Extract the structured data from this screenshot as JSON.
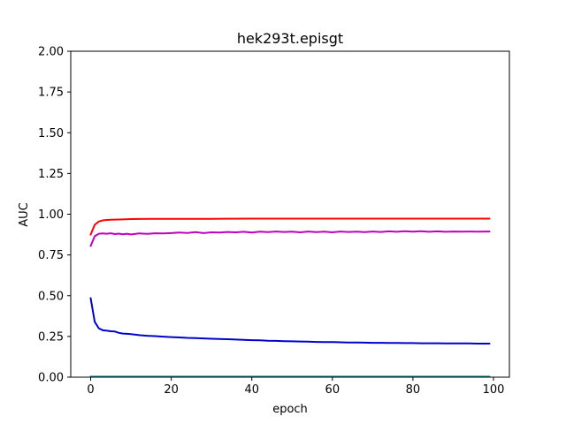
{
  "chart_data": {
    "type": "line",
    "title": "hek293t.episgt",
    "xlabel": "epoch",
    "ylabel": "AUC",
    "xlim": [
      -4.95,
      103.95
    ],
    "ylim": [
      0,
      2.0
    ],
    "xticks": [
      0,
      20,
      40,
      60,
      80,
      100
    ],
    "yticks": [
      0.0,
      0.25,
      0.5,
      0.75,
      1.0,
      1.25,
      1.5,
      1.75,
      2.0
    ],
    "xtick_labels": [
      "0",
      "20",
      "40",
      "60",
      "80",
      "100"
    ],
    "ytick_labels": [
      "0.00",
      "0.25",
      "0.50",
      "0.75",
      "1.00",
      "1.25",
      "1.50",
      "1.75",
      "2.00"
    ],
    "grid": false,
    "series": [
      {
        "color": "#ff0000",
        "x": [
          0,
          1,
          2,
          3,
          4,
          5,
          6,
          8,
          10,
          12,
          15,
          20,
          30,
          40,
          50,
          60,
          70,
          80,
          90,
          99
        ],
        "y": [
          0.875,
          0.935,
          0.955,
          0.962,
          0.965,
          0.966,
          0.967,
          0.968,
          0.97,
          0.971,
          0.972,
          0.972,
          0.972,
          0.973,
          0.973,
          0.973,
          0.973,
          0.973,
          0.973,
          0.973
        ]
      },
      {
        "color": "#bf00bf",
        "x": [
          0,
          1,
          2,
          3,
          4,
          5,
          6,
          7,
          8,
          9,
          10,
          12,
          14,
          16,
          18,
          20,
          22,
          24,
          26,
          28,
          30,
          32,
          34,
          36,
          38,
          40,
          42,
          44,
          46,
          48,
          50,
          52,
          54,
          56,
          58,
          60,
          62,
          64,
          66,
          68,
          70,
          72,
          74,
          76,
          78,
          80,
          82,
          84,
          86,
          88,
          90,
          92,
          94,
          96,
          99
        ],
        "y": [
          0.805,
          0.865,
          0.88,
          0.882,
          0.88,
          0.883,
          0.878,
          0.881,
          0.877,
          0.88,
          0.876,
          0.882,
          0.879,
          0.883,
          0.882,
          0.884,
          0.887,
          0.885,
          0.89,
          0.884,
          0.889,
          0.887,
          0.891,
          0.889,
          0.892,
          0.888,
          0.893,
          0.89,
          0.894,
          0.891,
          0.893,
          0.889,
          0.894,
          0.89,
          0.893,
          0.889,
          0.894,
          0.891,
          0.893,
          0.89,
          0.894,
          0.891,
          0.895,
          0.892,
          0.896,
          0.893,
          0.896,
          0.892,
          0.895,
          0.892,
          0.894,
          0.893,
          0.894,
          0.893,
          0.894
        ]
      },
      {
        "color": "#0000cd",
        "x": [
          0,
          1,
          2,
          3,
          4,
          5,
          6,
          7,
          8,
          9,
          10,
          12,
          14,
          16,
          18,
          20,
          22,
          24,
          26,
          28,
          30,
          32,
          34,
          36,
          38,
          40,
          42,
          44,
          46,
          48,
          50,
          52,
          54,
          56,
          58,
          60,
          62,
          64,
          66,
          68,
          70,
          72,
          74,
          76,
          78,
          80,
          82,
          84,
          86,
          88,
          90,
          92,
          94,
          96,
          99
        ],
        "y": [
          0.485,
          0.34,
          0.3,
          0.288,
          0.285,
          0.282,
          0.28,
          0.272,
          0.268,
          0.266,
          0.264,
          0.258,
          0.254,
          0.252,
          0.249,
          0.246,
          0.244,
          0.241,
          0.24,
          0.238,
          0.236,
          0.234,
          0.233,
          0.231,
          0.229,
          0.227,
          0.226,
          0.224,
          0.223,
          0.221,
          0.22,
          0.219,
          0.218,
          0.216,
          0.215,
          0.215,
          0.214,
          0.213,
          0.213,
          0.212,
          0.211,
          0.211,
          0.21,
          0.21,
          0.209,
          0.209,
          0.208,
          0.208,
          0.208,
          0.207,
          0.207,
          0.207,
          0.207,
          0.206,
          0.206
        ]
      },
      {
        "color": "#008b8b",
        "x": [
          0,
          10,
          20,
          30,
          40,
          50,
          60,
          70,
          80,
          90,
          99
        ],
        "y": [
          0.003,
          0.003,
          0.003,
          0.003,
          0.003,
          0.003,
          0.003,
          0.003,
          0.003,
          0.003,
          0.003
        ]
      }
    ]
  }
}
